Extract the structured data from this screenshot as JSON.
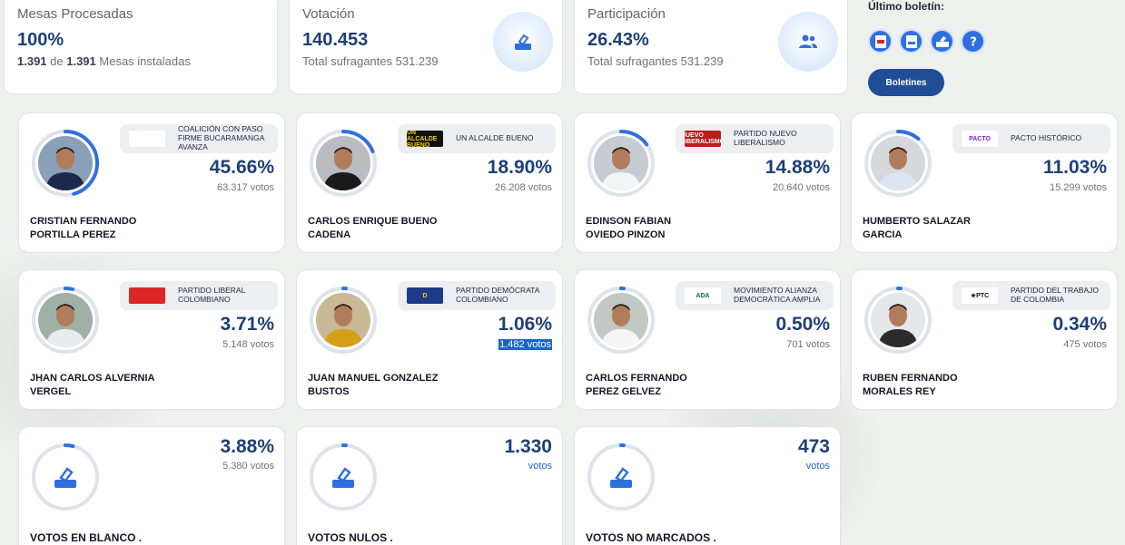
{
  "stats": [
    {
      "label": "Mesas Procesadas",
      "value": "100%",
      "sub_a": "1.391",
      "sub_b": " de ",
      "sub_c": "1.391",
      "sub_d": " Mesas instaladas",
      "icon": "none"
    },
    {
      "label": "Votación",
      "value": "140.453",
      "sub": "Total sufragantes 531.239",
      "icon": "ballot-icon"
    },
    {
      "label": "Participación",
      "value": "26.43%",
      "sub": "Total sufragantes 531.239",
      "icon": "people-icon"
    }
  ],
  "bulletin": {
    "title": "Último boletín:",
    "icons": [
      "pdf-icon",
      "json-icon",
      "archive-icon",
      "help-icon"
    ],
    "button_label": "Boletines"
  },
  "candidates": [
    {
      "party": "COALICIÓN CON PASO FIRME BUCARAMANGA AVANZA",
      "pct": "45.66%",
      "votes": "63.317 votos",
      "name_1": "CRISTIAN FERNANDO",
      "name_2": "PORTILLA PEREZ",
      "ring": 0.4566,
      "logo_text": "",
      "logo_bg": "#ffffff",
      "logo_fg": "#1e40af",
      "photo_bg": "#8aa0b8",
      "shirt": "#1c2a4a"
    },
    {
      "party": "UN ALCALDE BUENO",
      "pct": "18.90%",
      "votes": "26.208 votos",
      "name_1": "CARLOS ENRIQUE BUENO",
      "name_2": "CADENA",
      "ring": 0.189,
      "logo_text": "UN ALCALDE BUENO",
      "logo_bg": "#111111",
      "logo_fg": "#f5d000",
      "photo_bg": "#b9bcc0",
      "shirt": "#1a1a1a"
    },
    {
      "party": "PARTIDO NUEVO LIBERALISMO",
      "pct": "14.88%",
      "votes": "20.640 votos",
      "name_1": "EDINSON FABIAN",
      "name_2": "OVIEDO PINZON",
      "ring": 0.1488,
      "logo_text": "NUEVO LIBERALISMO",
      "logo_bg": "#b91c1c",
      "logo_fg": "#ffffff",
      "photo_bg": "#c7ccd2",
      "shirt": "#f3f4f6"
    },
    {
      "party": "PACTO HISTÓRICO",
      "pct": "11.03%",
      "votes": "15.299 votos",
      "name_1": "HUMBERTO SALAZAR",
      "name_2": "GARCIA",
      "ring": 0.1103,
      "logo_text": "PACTO",
      "logo_bg": "#ffffff",
      "logo_fg": "#7e22ce",
      "photo_bg": "#d6d8dc",
      "shirt": "#dbe4f0"
    },
    {
      "party": "PARTIDO LIBERAL COLOMBIANO",
      "pct": "3.71%",
      "votes": "5.148 votos",
      "name_1": "JHAN CARLOS ALVERNIA",
      "name_2": "VERGEL",
      "ring": 0.0371,
      "logo_text": "",
      "logo_bg": "#dc2626",
      "logo_fg": "#ffffff",
      "photo_bg": "#9fb0a6",
      "shirt": "#e8ecef"
    },
    {
      "party": "PARTIDO DEMÓCRATA COLOMBIANO",
      "pct": "1.06%",
      "votes": "1.482 votos",
      "name_1": "JUAN MANUEL GONZALEZ",
      "name_2": "BUSTOS",
      "ring": 0.0106,
      "logo_text": "D",
      "logo_bg": "#1e3a8a",
      "logo_fg": "#facc15",
      "photo_bg": "#c9b996",
      "shirt": "#d4a017"
    },
    {
      "party": "MOVIMIENTO ALIANZA DEMOCRÁTICA AMPLIA",
      "pct": "0.50%",
      "votes": "701 votos",
      "name_1": "CARLOS FERNANDO",
      "name_2": "PEREZ GELVEZ",
      "ring": 0.005,
      "logo_text": "ADA",
      "logo_bg": "#ffffff",
      "logo_fg": "#166534",
      "photo_bg": "#c2c8c2",
      "shirt": "#f5f5f5"
    },
    {
      "party": "PARTIDO DEL TRABAJO DE COLOMBIA",
      "pct": "0.34%",
      "votes": "475 votos",
      "name_1": "RUBEN FERNANDO",
      "name_2": "MORALES REY",
      "ring": 0.0034,
      "logo_text": "★PTC",
      "logo_bg": "#ffffff",
      "logo_fg": "#111111",
      "photo_bg": "#e5e7eb",
      "shirt": "#2b2b2b"
    }
  ],
  "specials": [
    {
      "value": "3.88%",
      "sub": "5.380 votos",
      "name": "VOTOS EN BLANCO .",
      "ring": 0.0388
    },
    {
      "value": "1.330",
      "sub": "votos",
      "name": "VOTOS NULOS .",
      "ring": 0.0095
    },
    {
      "value": "473",
      "sub": "votos",
      "name": "VOTOS NO MARCADOS .",
      "ring": 0.0034
    }
  ],
  "colors": {
    "accent": "#1d3f7a",
    "ring": "#2f6fe0",
    "ring_track": "#dde3ea",
    "highlight": "#1a66c8"
  }
}
